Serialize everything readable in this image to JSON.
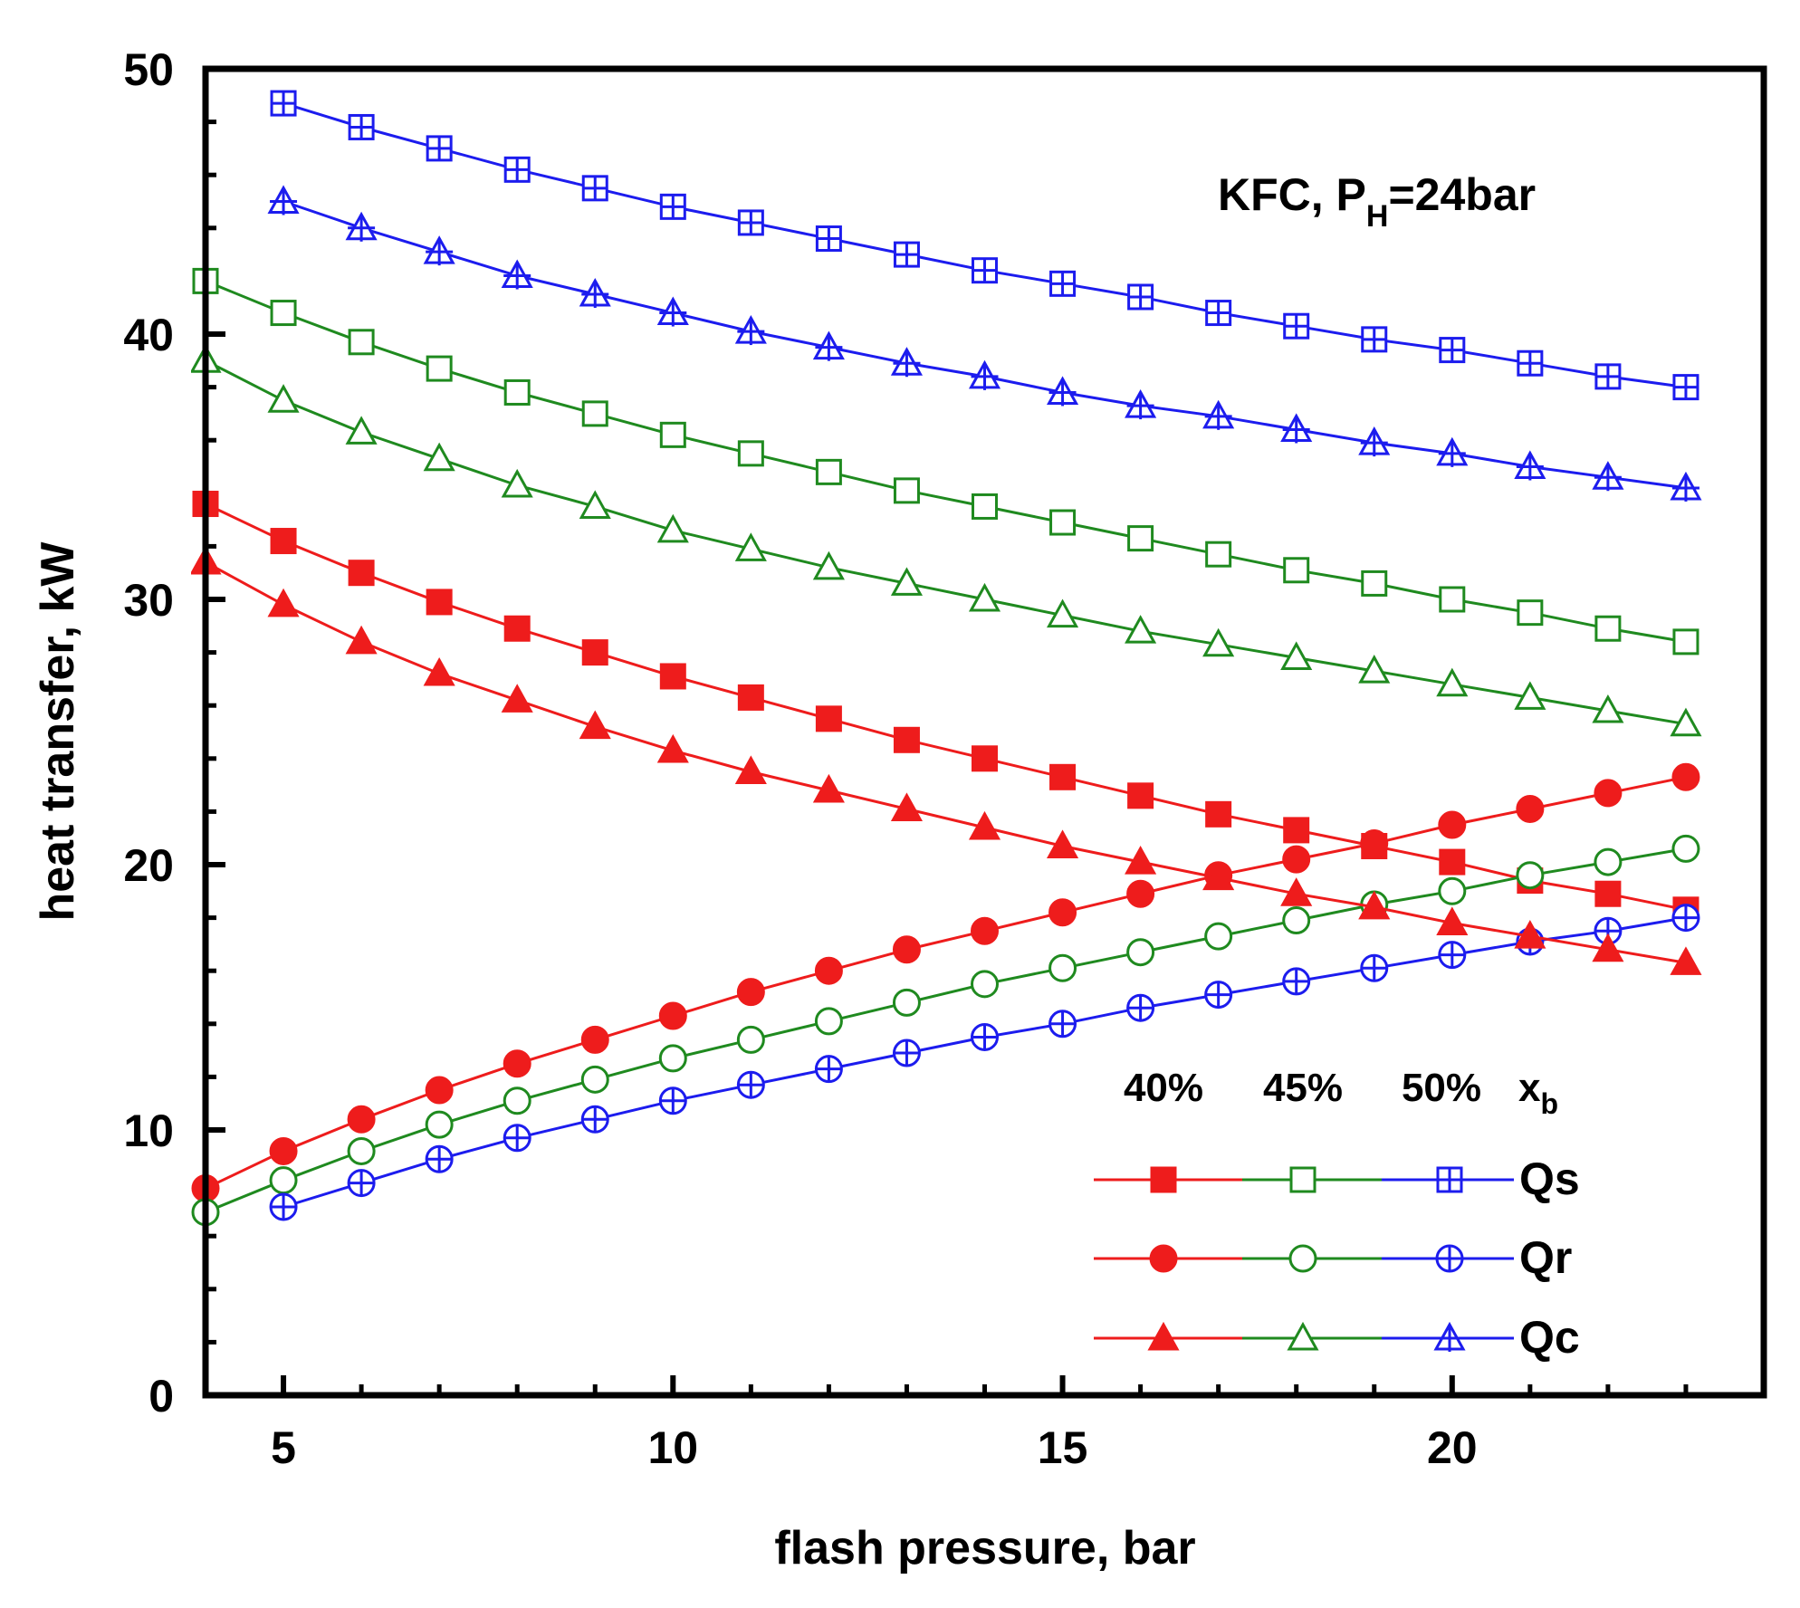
{
  "chart_data": {
    "type": "line",
    "title": "",
    "xlabel": "flash pressure, bar",
    "ylabel": "heat transfer, kW",
    "xlim": [
      4,
      24
    ],
    "ylim": [
      0,
      50
    ],
    "xticks": [
      "5",
      "10",
      "15",
      "20"
    ],
    "yticks": [
      "0",
      "10",
      "20",
      "30",
      "40",
      "50"
    ],
    "annotation": {
      "main": "KFC, P",
      "sub": "H",
      "tail": "=24bar"
    },
    "legend": {
      "placement": "bottom-right",
      "columns": [
        "40%",
        "45%",
        "50%"
      ],
      "xb_main": "x",
      "xb_sub": "b",
      "rows": [
        "Qs",
        "Qr",
        "Qc"
      ]
    },
    "colors": {
      "40%": "#ee1c1c",
      "45%": "#1f8a1f",
      "50%": "#1c1cee"
    },
    "series": [
      {
        "name": "Qs 40%",
        "quantity": "Qs",
        "xb": "40%",
        "marker": "square-filled",
        "x": [
          4,
          5,
          6,
          7,
          8,
          9,
          10,
          11,
          12,
          13,
          14,
          15,
          16,
          17,
          18,
          19,
          20,
          21,
          22,
          23
        ],
        "y": [
          33.6,
          32.2,
          31.0,
          29.9,
          28.9,
          28.0,
          27.1,
          26.3,
          25.5,
          24.7,
          24.0,
          23.3,
          22.6,
          21.9,
          21.3,
          20.7,
          20.1,
          19.4,
          18.9,
          18.3
        ]
      },
      {
        "name": "Qs 45%",
        "quantity": "Qs",
        "xb": "45%",
        "marker": "square-open",
        "x": [
          4,
          5,
          6,
          7,
          8,
          9,
          10,
          11,
          12,
          13,
          14,
          15,
          16,
          17,
          18,
          19,
          20,
          21,
          22,
          23
        ],
        "y": [
          42.0,
          40.8,
          39.7,
          38.7,
          37.8,
          37.0,
          36.2,
          35.5,
          34.8,
          34.1,
          33.5,
          32.9,
          32.3,
          31.7,
          31.1,
          30.6,
          30.0,
          29.5,
          28.9,
          28.4
        ]
      },
      {
        "name": "Qs 50%",
        "quantity": "Qs",
        "xb": "50%",
        "marker": "square-plus",
        "x": [
          5,
          6,
          7,
          8,
          9,
          10,
          11,
          12,
          13,
          14,
          15,
          16,
          17,
          18,
          19,
          20,
          21,
          22,
          23
        ],
        "y": [
          48.7,
          47.8,
          47.0,
          46.2,
          45.5,
          44.8,
          44.2,
          43.6,
          43.0,
          42.4,
          41.9,
          41.4,
          40.8,
          40.3,
          39.8,
          39.4,
          38.9,
          38.4,
          38.0
        ]
      },
      {
        "name": "Qr 40%",
        "quantity": "Qr",
        "xb": "40%",
        "marker": "circle-filled",
        "x": [
          4,
          5,
          6,
          7,
          8,
          9,
          10,
          11,
          12,
          13,
          14,
          15,
          16,
          17,
          18,
          19,
          20,
          21,
          22,
          23
        ],
        "y": [
          7.8,
          9.2,
          10.4,
          11.5,
          12.5,
          13.4,
          14.3,
          15.2,
          16.0,
          16.8,
          17.5,
          18.2,
          18.9,
          19.6,
          20.2,
          20.8,
          21.5,
          22.1,
          22.7,
          23.3
        ]
      },
      {
        "name": "Qr 45%",
        "quantity": "Qr",
        "xb": "45%",
        "marker": "circle-open",
        "x": [
          4,
          5,
          6,
          7,
          8,
          9,
          10,
          11,
          12,
          13,
          14,
          15,
          16,
          17,
          18,
          19,
          20,
          21,
          22,
          23
        ],
        "y": [
          6.9,
          8.1,
          9.2,
          10.2,
          11.1,
          11.9,
          12.7,
          13.4,
          14.1,
          14.8,
          15.5,
          16.1,
          16.7,
          17.3,
          17.9,
          18.5,
          19.0,
          19.6,
          20.1,
          20.6
        ]
      },
      {
        "name": "Qr 50%",
        "quantity": "Qr",
        "xb": "50%",
        "marker": "circle-plus",
        "x": [
          5,
          6,
          7,
          8,
          9,
          10,
          11,
          12,
          13,
          14,
          15,
          16,
          17,
          18,
          19,
          20,
          21,
          22,
          23
        ],
        "y": [
          7.1,
          8.0,
          8.9,
          9.7,
          10.4,
          11.1,
          11.7,
          12.3,
          12.9,
          13.5,
          14.0,
          14.6,
          15.1,
          15.6,
          16.1,
          16.6,
          17.1,
          17.5,
          18.0
        ]
      },
      {
        "name": "Qc 40%",
        "quantity": "Qc",
        "xb": "40%",
        "marker": "triangle-filled",
        "x": [
          4,
          5,
          6,
          7,
          8,
          9,
          10,
          11,
          12,
          13,
          14,
          15,
          16,
          17,
          18,
          19,
          20,
          21,
          22,
          23
        ],
        "y": [
          31.4,
          29.8,
          28.4,
          27.2,
          26.2,
          25.2,
          24.3,
          23.5,
          22.8,
          22.1,
          21.4,
          20.7,
          20.1,
          19.5,
          18.9,
          18.4,
          17.8,
          17.3,
          16.8,
          16.3
        ]
      },
      {
        "name": "Qc 45%",
        "quantity": "Qc",
        "xb": "45%",
        "marker": "triangle-open",
        "x": [
          4,
          5,
          6,
          7,
          8,
          9,
          10,
          11,
          12,
          13,
          14,
          15,
          16,
          17,
          18,
          19,
          20,
          21,
          22,
          23
        ],
        "y": [
          39.0,
          37.5,
          36.3,
          35.3,
          34.3,
          33.5,
          32.6,
          31.9,
          31.2,
          30.6,
          30.0,
          29.4,
          28.8,
          28.3,
          27.8,
          27.3,
          26.8,
          26.3,
          25.8,
          25.3
        ]
      },
      {
        "name": "Qc 50%",
        "quantity": "Qc",
        "xb": "50%",
        "marker": "triangle-plus",
        "x": [
          5,
          6,
          7,
          8,
          9,
          10,
          11,
          12,
          13,
          14,
          15,
          16,
          17,
          18,
          19,
          20,
          21,
          22,
          23
        ],
        "y": [
          45.0,
          44.0,
          43.1,
          42.2,
          41.5,
          40.8,
          40.1,
          39.5,
          38.9,
          38.4,
          37.8,
          37.3,
          36.9,
          36.4,
          35.9,
          35.5,
          35.0,
          34.6,
          34.2
        ]
      }
    ]
  }
}
